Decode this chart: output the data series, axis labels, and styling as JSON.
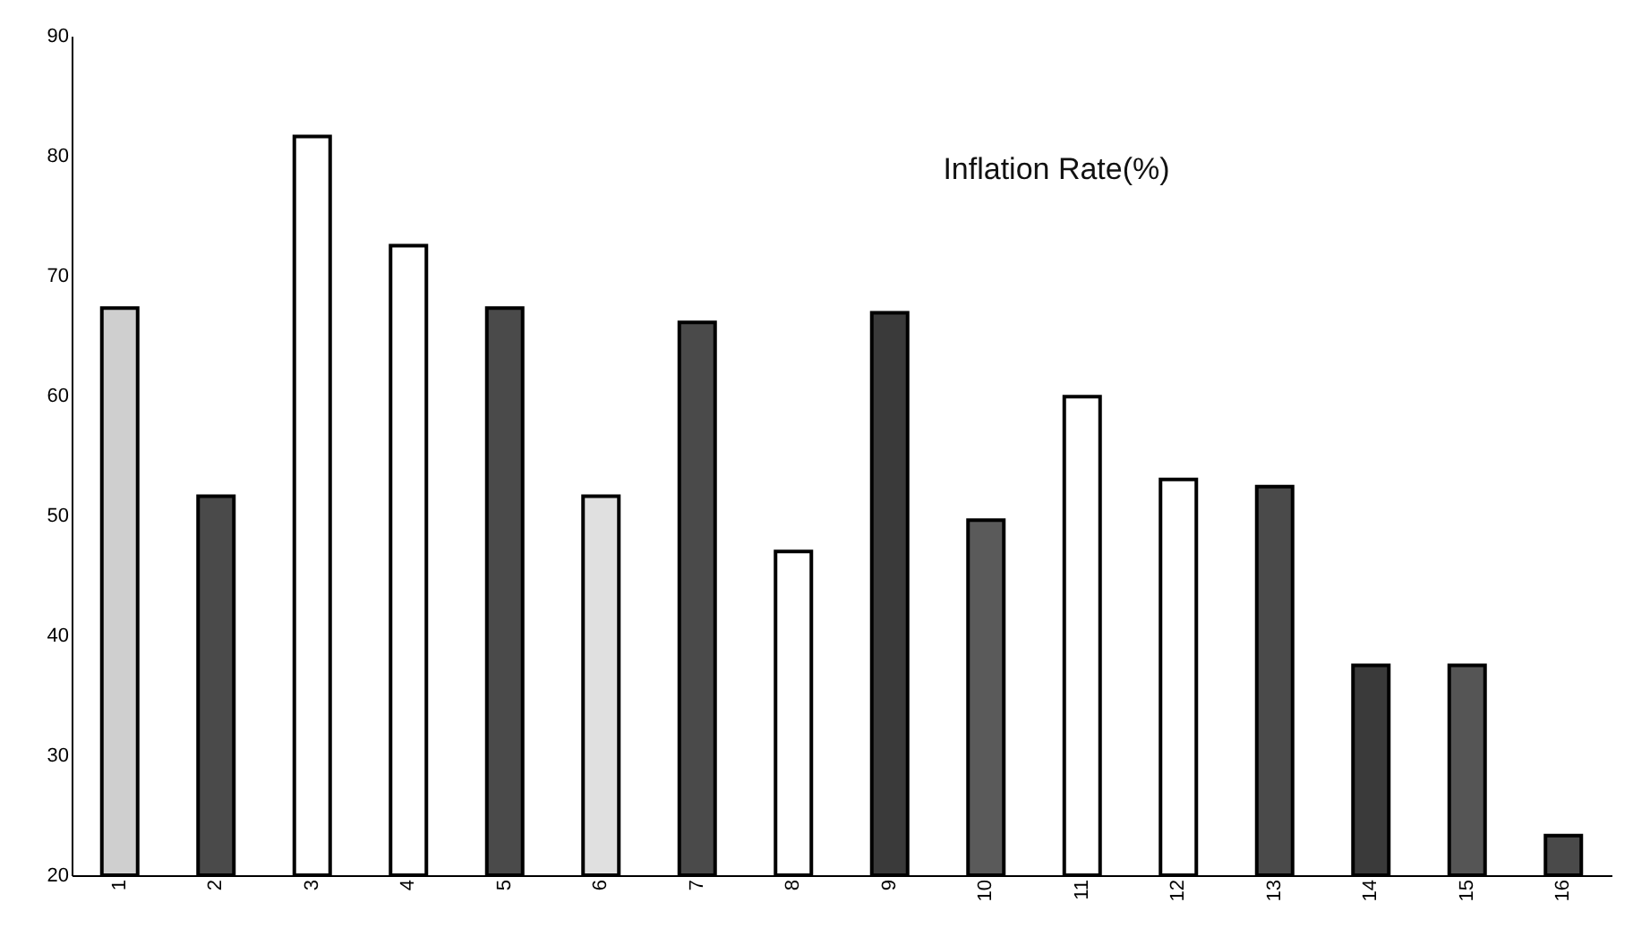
{
  "chart_data": {
    "type": "bar",
    "title": "Inflation Rate(%)",
    "categories": [
      "1",
      "2",
      "3",
      "4",
      "5",
      "6",
      "7",
      "8",
      "9",
      "10",
      "11",
      "12",
      "13",
      "14",
      "15",
      "16"
    ],
    "values": [
      67.3,
      51.6,
      81.6,
      72.5,
      67.3,
      51.6,
      66.1,
      47.0,
      66.9,
      49.6,
      59.9,
      53.0,
      52.4,
      37.5,
      37.5,
      23.3
    ],
    "colors": [
      "#cfcfcf",
      "#4a4a4a",
      "#ffffff",
      "#ffffff",
      "#4a4a4a",
      "#e0e0e0",
      "#4a4a4a",
      "#ffffff",
      "#3a3a3a",
      "#5a5a5a",
      "#ffffff",
      "#ffffff",
      "#4a4a4a",
      "#3a3a3a",
      "#555555",
      "#4a4a4a"
    ],
    "ylim": [
      20,
      90
    ],
    "yticks": [
      20,
      30,
      40,
      50,
      60,
      70,
      80,
      90
    ],
    "grid": false,
    "legend": false
  }
}
